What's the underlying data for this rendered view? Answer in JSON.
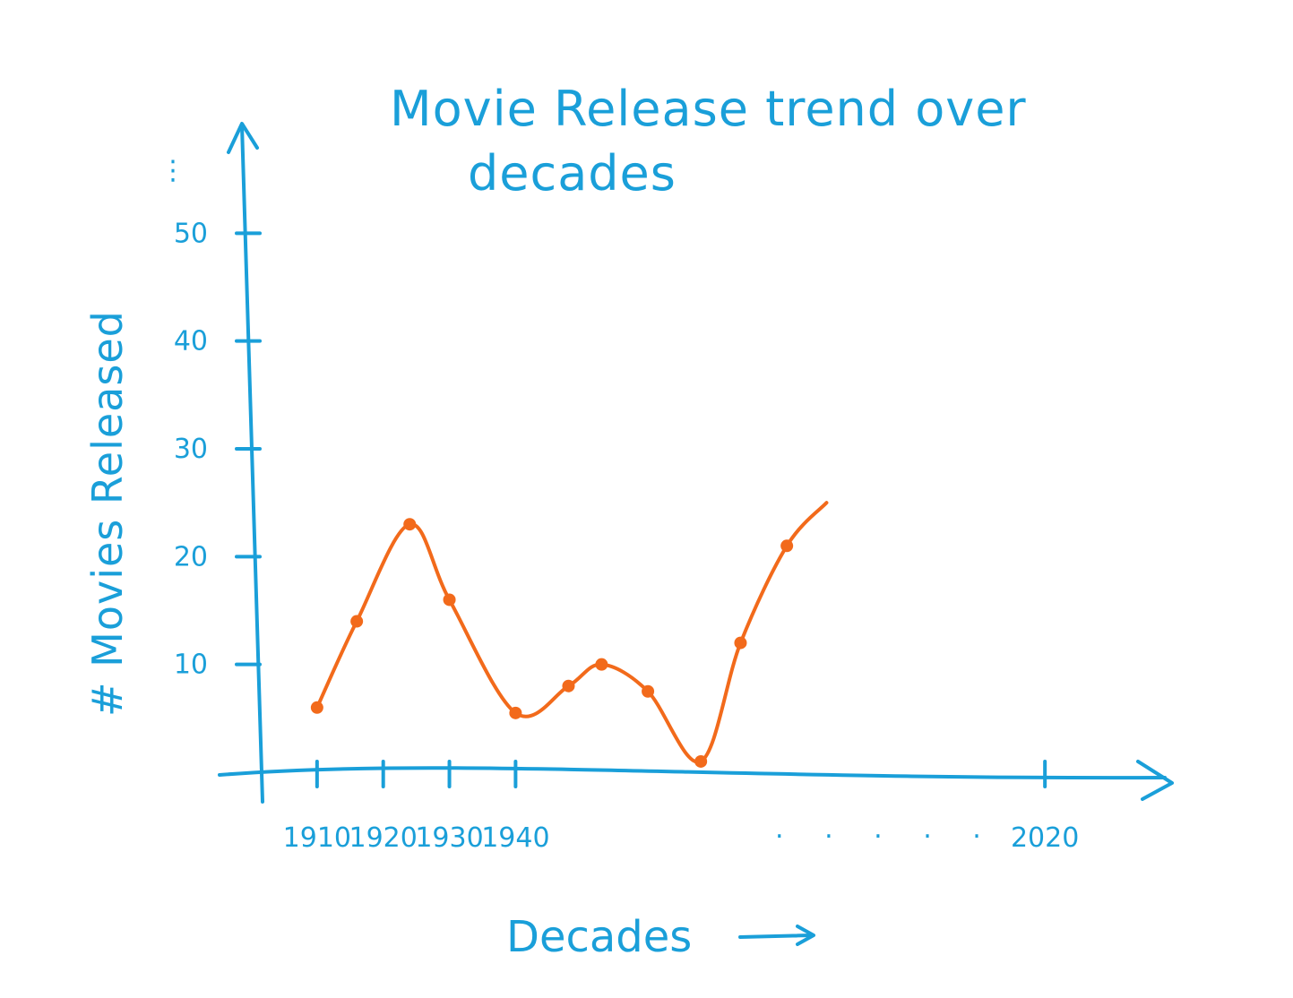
{
  "chart_data": {
    "type": "line",
    "title": [
      "Movie  Release  trend  over",
      "decades"
    ],
    "xlabel": "Decades",
    "ylabel": "# Movies Released",
    "y_ticks": [
      10,
      20,
      30,
      40,
      50
    ],
    "ylim": [
      0,
      60
    ],
    "x_ticks": [
      {
        "label": "1910",
        "x": 1910
      },
      {
        "label": "1920",
        "x": 1920
      },
      {
        "label": "1930",
        "x": 1930
      },
      {
        "label": "1940",
        "x": 1940
      },
      {
        "label": "2020",
        "x": 2020
      }
    ],
    "x_ellipsis": ". . . . .",
    "y_ellipsis": "⋮",
    "xlim": [
      1900,
      2030
    ],
    "series": [
      {
        "x": [
          1910,
          1916,
          1924,
          1930,
          1940,
          1948,
          1953,
          1960,
          1968,
          1974,
          1981,
          1987
        ],
        "y": [
          6,
          14,
          23,
          16,
          5.5,
          8,
          10,
          7.5,
          1,
          12,
          21,
          25
        ]
      }
    ]
  }
}
